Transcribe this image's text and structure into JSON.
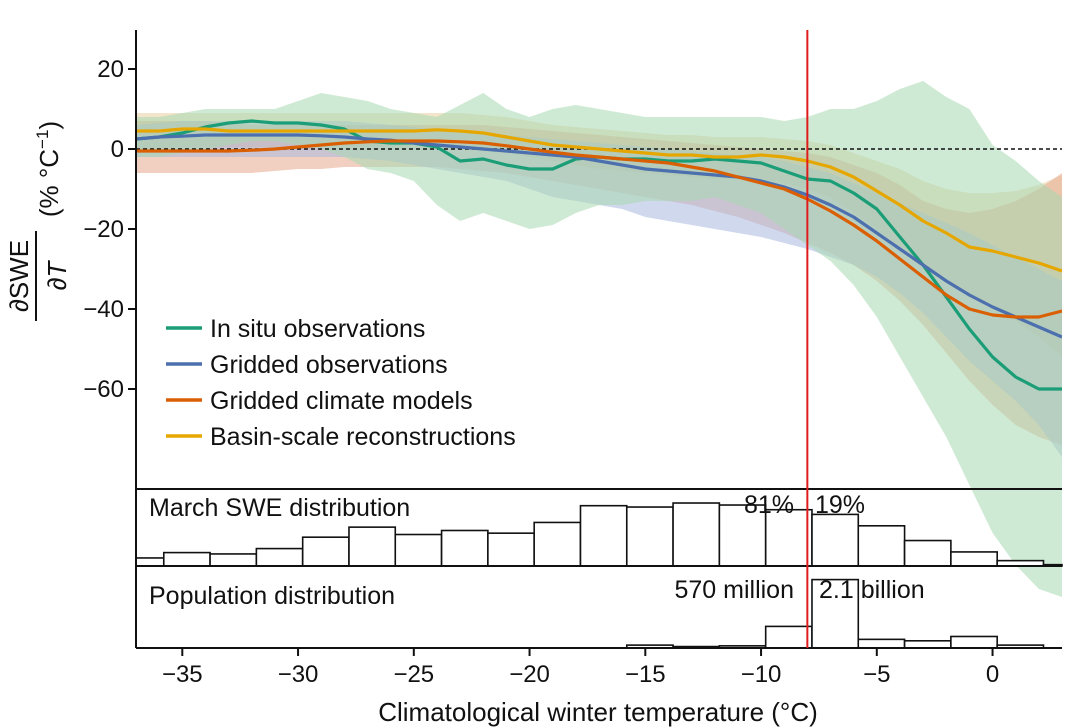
{
  "chart_data": [
    {
      "type": "line",
      "ylabel": {
        "numerator": "∂SWE",
        "denominator": "∂T",
        "unit_open": "(% °C",
        "unit_exp": "−1",
        "unit_close": ")"
      },
      "xlabel": "Climatological winter temperature (°C)",
      "xlim": [
        -37,
        3
      ],
      "ylim": [
        -85,
        30
      ],
      "x_ticks": [
        {
          "value": -35,
          "label": "−35"
        },
        {
          "value": -30,
          "label": "−30"
        },
        {
          "value": -25,
          "label": "−25"
        },
        {
          "value": -20,
          "label": "−20"
        },
        {
          "value": -15,
          "label": "−15"
        },
        {
          "value": -10,
          "label": "−10"
        },
        {
          "value": -5,
          "label": "−5"
        },
        {
          "value": 0,
          "label": "0"
        }
      ],
      "y_ticks": [
        {
          "value": 20,
          "label": "20"
        },
        {
          "value": 0,
          "label": "0"
        },
        {
          "value": -20,
          "label": "−20"
        },
        {
          "value": -40,
          "label": "−40"
        },
        {
          "value": -60,
          "label": "−60"
        }
      ],
      "zero_line": 0,
      "threshold_x": -8,
      "legend_position": "lower-left",
      "x": [
        -37,
        -36,
        -35,
        -34,
        -33,
        -32,
        -31,
        -30,
        -29,
        -28,
        -27,
        -26,
        -25,
        -24,
        -23,
        -22,
        -21,
        -20,
        -19,
        -18,
        -17,
        -16,
        -15,
        -14,
        -13,
        -12,
        -11,
        -10,
        -9,
        -8,
        -7,
        -6,
        -5,
        -4,
        -3,
        -2,
        -1,
        0,
        1,
        2,
        3
      ],
      "series": [
        {
          "name": "In situ observations",
          "color": "#1b9e77",
          "band_color": "#a8d8b0",
          "values": [
            2.5,
            3,
            4,
            5.5,
            6.5,
            7,
            6.5,
            6.5,
            6,
            5,
            2,
            1.5,
            1.5,
            0.5,
            -3,
            -2.5,
            -4,
            -5,
            -5,
            -2.5,
            -2,
            -2.5,
            -2.5,
            -3,
            -3,
            -2.5,
            -3,
            -3.5,
            -5.5,
            -7.5,
            -8,
            -11,
            -15,
            -22,
            -29,
            -37,
            -45,
            -52,
            -57,
            -60,
            -60
          ],
          "upper": [
            8,
            8,
            9,
            10,
            10,
            10,
            10,
            12,
            14,
            13,
            12,
            10,
            9,
            8,
            11,
            14,
            10,
            8,
            10,
            11,
            10,
            9,
            8,
            8,
            8,
            8,
            8,
            8,
            7,
            8,
            10,
            10,
            12,
            15,
            17,
            13,
            10,
            1,
            -3,
            -8,
            -12
          ],
          "lower": [
            -2,
            -2,
            -1,
            0,
            1,
            2,
            2,
            1,
            0,
            -2,
            -5,
            -6,
            -8,
            -14,
            -18,
            -16,
            -18,
            -20,
            -19,
            -16,
            -14,
            -14,
            -13,
            -13,
            -13,
            -12,
            -14,
            -16,
            -20,
            -24,
            -28,
            -34,
            -42,
            -52,
            -62,
            -72,
            -84,
            -96,
            -104,
            -110,
            -112
          ]
        },
        {
          "name": "Gridded observations",
          "color": "#4c6fae",
          "band_color": "#aab8e0",
          "values": [
            2.5,
            3,
            3.2,
            3.5,
            3.5,
            3.5,
            3.5,
            3.5,
            3.3,
            3,
            2.5,
            2.2,
            1.5,
            1,
            0.5,
            0,
            -0.5,
            -1,
            -1.5,
            -2,
            -3,
            -4,
            -5,
            -5.5,
            -6,
            -6.5,
            -7,
            -8,
            -9.5,
            -11.5,
            -14,
            -17,
            -21,
            -25,
            -29,
            -33,
            -36.5,
            -39.5,
            -42,
            -44.5,
            -47
          ],
          "upper": [
            6,
            6.5,
            7,
            7,
            7,
            7,
            7,
            7,
            7,
            7,
            6.5,
            6,
            5.5,
            5,
            4.5,
            4,
            3.5,
            3,
            2.5,
            2,
            1.5,
            1,
            0.5,
            0,
            -0.5,
            -1,
            -1.5,
            -2,
            -3,
            -4.5,
            -6,
            -8.5,
            -11,
            -13.5,
            -16,
            -18.5,
            -21,
            -24,
            -27,
            -30,
            -33
          ],
          "lower": [
            -2,
            -2,
            -2,
            -2,
            -2,
            -2,
            -2,
            -2,
            -2,
            -2,
            -2.5,
            -3,
            -4,
            -5,
            -6,
            -7,
            -8,
            -10,
            -12,
            -13,
            -14,
            -15,
            -17,
            -18,
            -19,
            -20,
            -21,
            -22,
            -23.5,
            -25,
            -27,
            -29,
            -32,
            -36,
            -41,
            -47,
            -53,
            -58,
            -63,
            -69,
            -77
          ]
        },
        {
          "name": "Gridded climate models",
          "color": "#d95f02",
          "band_color": "#e8a98e",
          "values": [
            -0.5,
            -0.5,
            -0.5,
            -0.5,
            -0.5,
            -0.3,
            0,
            0.5,
            1,
            1.5,
            1.8,
            2,
            2,
            2,
            1.8,
            1.5,
            0.8,
            0,
            -0.8,
            -1.5,
            -2,
            -2.5,
            -3,
            -3.5,
            -4.5,
            -5.5,
            -7,
            -8.5,
            -10,
            -12.5,
            -15.5,
            -19,
            -23,
            -27.5,
            -32,
            -36.5,
            -40,
            -41.5,
            -42,
            -42,
            -40.5
          ],
          "upper": [
            7,
            7,
            7,
            7,
            6.5,
            6,
            6,
            6,
            6,
            6,
            6,
            6,
            6,
            6,
            6,
            6,
            5.5,
            5,
            4.5,
            4,
            3.5,
            3,
            2.5,
            2,
            1.5,
            1,
            0.5,
            0,
            -0.5,
            -1,
            -2,
            -4,
            -6,
            -9,
            -13,
            -15,
            -16,
            -15,
            -13,
            -10,
            -6
          ],
          "lower": [
            -6,
            -6,
            -6,
            -6,
            -6,
            -6,
            -5.5,
            -5,
            -5,
            -4.5,
            -4.5,
            -4.5,
            -4.5,
            -4.5,
            -5,
            -5.5,
            -6,
            -7,
            -8,
            -9,
            -10,
            -11,
            -12,
            -13,
            -14,
            -15.5,
            -17,
            -19,
            -21,
            -23.5,
            -26,
            -29,
            -33,
            -38,
            -44,
            -51,
            -58,
            -64,
            -69,
            -72,
            -74
          ]
        },
        {
          "name": "Basin-scale reconstructions",
          "color": "#e6a600",
          "band_color": "#e8d0a0",
          "values": [
            4.5,
            4.5,
            5,
            5,
            4.5,
            4.5,
            4.5,
            4.5,
            4.5,
            4.5,
            4.5,
            4.5,
            4.5,
            4.8,
            4.5,
            4,
            3,
            2,
            1,
            0.5,
            0,
            -0.5,
            -1,
            -1.5,
            -1.5,
            -2,
            -2,
            -1.5,
            -2,
            -3,
            -4.5,
            -7,
            -10.5,
            -14,
            -18,
            -21,
            -24.5,
            -25.5,
            -27,
            -28.5,
            -30.5
          ],
          "upper": [
            9,
            9,
            9,
            9,
            9,
            9,
            9,
            9,
            9,
            9,
            9,
            9,
            9,
            9,
            9,
            8.5,
            8,
            7,
            6,
            5.5,
            5,
            4.5,
            4,
            3.5,
            3.5,
            3,
            3,
            3,
            2.5,
            2,
            1,
            -1,
            -3,
            -5,
            -8,
            -10,
            -11,
            -11,
            -10.5,
            -9,
            -6.5
          ],
          "lower": [
            0,
            0,
            0.5,
            0.5,
            0.5,
            0.5,
            0.5,
            0.5,
            0.5,
            0.5,
            0.5,
            0.5,
            0.5,
            0.5,
            0,
            -0.5,
            -1,
            -2,
            -3,
            -4,
            -5,
            -5.5,
            -6,
            -6.5,
            -7,
            -7.5,
            -7.5,
            -7.5,
            -8.5,
            -10,
            -12,
            -16,
            -20,
            -25,
            -30,
            -33,
            -37,
            -40,
            -43,
            -47,
            -52
          ]
        }
      ]
    },
    {
      "type": "bar",
      "title": "March SWE distribution",
      "left_label": "81%",
      "right_label": "19%",
      "bins": [
        {
          "start": -38,
          "end": -35.8,
          "value": 0.12
        },
        {
          "start": -35.8,
          "end": -33.8,
          "value": 0.2
        },
        {
          "start": -33.8,
          "end": -31.8,
          "value": 0.18
        },
        {
          "start": -31.8,
          "end": -29.8,
          "value": 0.26
        },
        {
          "start": -29.8,
          "end": -27.8,
          "value": 0.43
        },
        {
          "start": -27.8,
          "end": -25.8,
          "value": 0.58
        },
        {
          "start": -25.8,
          "end": -23.8,
          "value": 0.47
        },
        {
          "start": -23.8,
          "end": -21.8,
          "value": 0.53
        },
        {
          "start": -21.8,
          "end": -19.8,
          "value": 0.49
        },
        {
          "start": -19.8,
          "end": -17.8,
          "value": 0.65
        },
        {
          "start": -17.8,
          "end": -15.8,
          "value": 0.9
        },
        {
          "start": -15.8,
          "end": -13.8,
          "value": 0.88
        },
        {
          "start": -13.8,
          "end": -11.8,
          "value": 0.94
        },
        {
          "start": -11.8,
          "end": -9.8,
          "value": 0.91
        },
        {
          "start": -9.8,
          "end": -7.8,
          "value": 0.84
        },
        {
          "start": -7.8,
          "end": -5.8,
          "value": 0.77
        },
        {
          "start": -5.8,
          "end": -3.8,
          "value": 0.6
        },
        {
          "start": -3.8,
          "end": -1.8,
          "value": 0.38
        },
        {
          "start": -1.8,
          "end": 0.2,
          "value": 0.21
        },
        {
          "start": 0.2,
          "end": 2.2,
          "value": 0.08
        },
        {
          "start": 2.2,
          "end": 3,
          "value": 0.02
        }
      ]
    },
    {
      "type": "bar",
      "title": "Population distribution",
      "left_label": "570 million",
      "right_label": "2.1 billion",
      "bins": [
        {
          "start": -15.8,
          "end": -13.8,
          "value": 0.04
        },
        {
          "start": -13.8,
          "end": -11.8,
          "value": 0.02
        },
        {
          "start": -11.8,
          "end": -9.8,
          "value": 0.03
        },
        {
          "start": -9.8,
          "end": -7.8,
          "value": 0.3
        },
        {
          "start": -7.8,
          "end": -5.8,
          "value": 0.95
        },
        {
          "start": -5.8,
          "end": -3.8,
          "value": 0.12
        },
        {
          "start": -3.8,
          "end": -1.8,
          "value": 0.1
        },
        {
          "start": -1.8,
          "end": 0.2,
          "value": 0.16
        },
        {
          "start": 0.2,
          "end": 2.2,
          "value": 0.04
        }
      ]
    }
  ]
}
